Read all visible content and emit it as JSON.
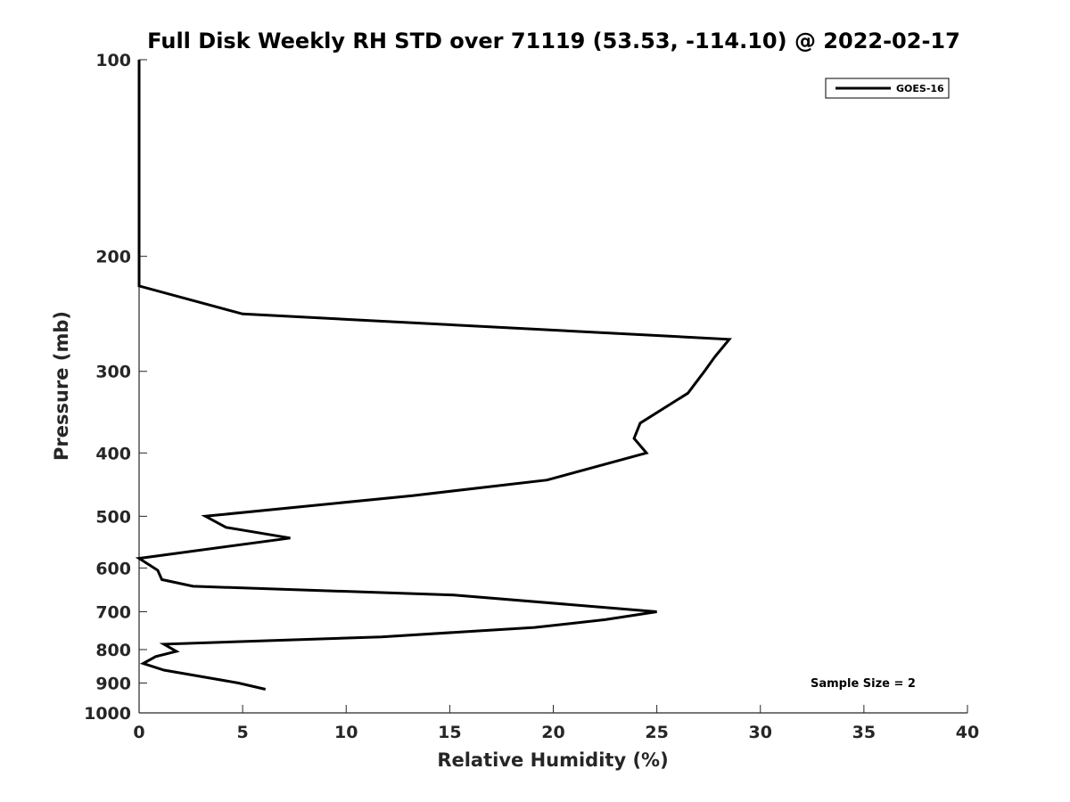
{
  "chart_data": {
    "type": "line",
    "title": "Full Disk Weekly RH STD over 71119 (53.53, -114.10) @ 2022-02-17",
    "xlabel": "Relative Humidity (%)",
    "ylabel": "Pressure (mb)",
    "xlim": [
      0,
      40
    ],
    "ylim": [
      1000,
      100
    ],
    "yscale": "log",
    "y_inverted": true,
    "grid": false,
    "legend_position": "top-right",
    "x_ticks": [
      0,
      5,
      10,
      15,
      20,
      25,
      30,
      35,
      40
    ],
    "y_ticks": [
      100,
      200,
      300,
      400,
      500,
      600,
      700,
      800,
      900,
      1000
    ],
    "annotation": "Sample Size = 2",
    "series": [
      {
        "name": "GOES-16",
        "color": "#000000",
        "points": [
          {
            "x": 0,
            "y": 100
          },
          {
            "x": 0,
            "y": 150
          },
          {
            "x": 0,
            "y": 200
          },
          {
            "x": 0,
            "y": 222
          },
          {
            "x": 5,
            "y": 245
          },
          {
            "x": 28.5,
            "y": 268
          },
          {
            "x": 27.8,
            "y": 285
          },
          {
            "x": 27.3,
            "y": 300
          },
          {
            "x": 26.5,
            "y": 324
          },
          {
            "x": 24.2,
            "y": 360
          },
          {
            "x": 23.9,
            "y": 380
          },
          {
            "x": 24.5,
            "y": 400
          },
          {
            "x": 19.7,
            "y": 440
          },
          {
            "x": 13.2,
            "y": 465
          },
          {
            "x": 3.2,
            "y": 500
          },
          {
            "x": 4.2,
            "y": 520
          },
          {
            "x": 7.3,
            "y": 540
          },
          {
            "x": 0,
            "y": 580
          },
          {
            "x": 0.9,
            "y": 605
          },
          {
            "x": 1.1,
            "y": 625
          },
          {
            "x": 2.6,
            "y": 640
          },
          {
            "x": 15.2,
            "y": 660
          },
          {
            "x": 25.0,
            "y": 700
          },
          {
            "x": 22.5,
            "y": 720
          },
          {
            "x": 19.1,
            "y": 740
          },
          {
            "x": 11.7,
            "y": 765
          },
          {
            "x": 1.2,
            "y": 785
          },
          {
            "x": 1.8,
            "y": 805
          },
          {
            "x": 0.8,
            "y": 820
          },
          {
            "x": 0.2,
            "y": 840
          },
          {
            "x": 1.2,
            "y": 860
          },
          {
            "x": 4.8,
            "y": 900
          },
          {
            "x": 6.1,
            "y": 920
          }
        ]
      }
    ]
  }
}
